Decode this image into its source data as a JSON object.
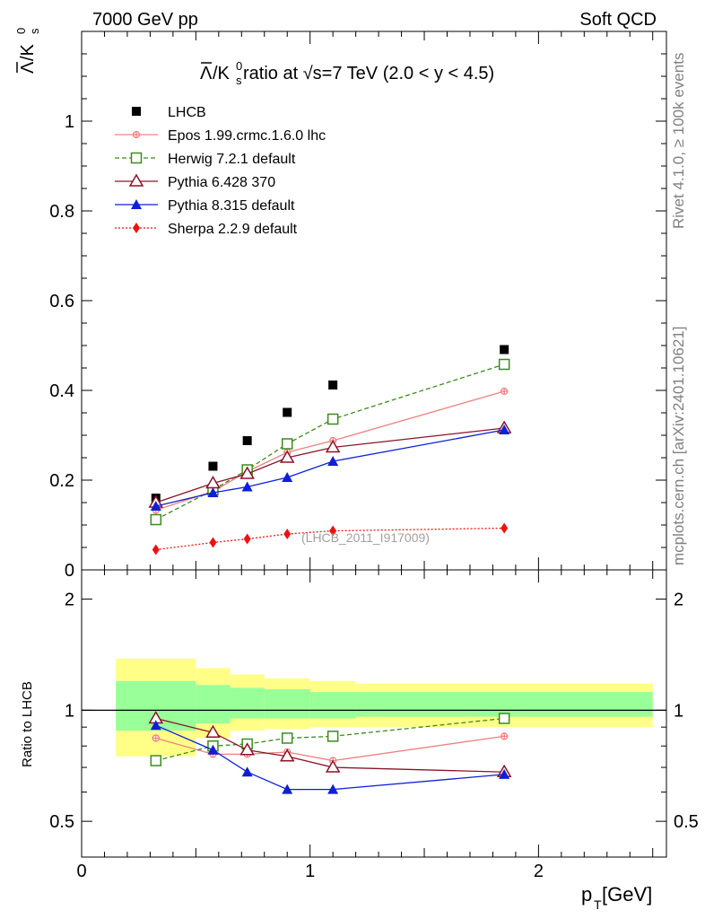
{
  "header": {
    "left": "7000 GeV pp",
    "right": "Soft QCD"
  },
  "side_labels": {
    "rivet": "Rivet 4.1.0, ≥ 100k events",
    "mcplots": "mcplots.cern.ch [arXiv:2401.10621]"
  },
  "main_plot": {
    "title": "Λ̅/K⁰ₛ ratio at √s=7 TeV (2.0 < y < 4.5)",
    "title_prefix": "/K",
    "title_rest": " ratio at √s=7 TeV (2.0 < y < 4.5)",
    "ylabel": "/K",
    "watermark": "(LHCB_2011_I917009)",
    "ylim": [
      0,
      1.2
    ],
    "yticks": [
      "0",
      "0.2",
      "0.4",
      "0.6",
      "0.8",
      "1"
    ]
  },
  "ratio_plot": {
    "ylabel": "Ratio to LHCB",
    "yticks": [
      "0.5",
      "1",
      "2"
    ]
  },
  "xaxis": {
    "label": "p",
    "label_sub": "T",
    "label_unit": " [GeV]",
    "ticks": [
      "0",
      "1",
      "2"
    ],
    "xlim": [
      0,
      2.56
    ]
  },
  "legend": [
    {
      "key": "lhcb",
      "label": "LHCB"
    },
    {
      "key": "epos",
      "label": "Epos 1.99.crmc.1.6.0 lhc"
    },
    {
      "key": "herwig",
      "label": "Herwig 7.2.1 default"
    },
    {
      "key": "py6",
      "label": "Pythia 6.428 370"
    },
    {
      "key": "py8",
      "label": "Pythia 8.315 default"
    },
    {
      "key": "sherpa",
      "label": "Sherpa 2.2.9 default"
    }
  ],
  "chart_data": {
    "type": "scatter",
    "title": "Λ̅/K⁰ₛ ratio at √s=7 TeV (2.0 < y < 4.5)",
    "xlabel": "p_T [GeV]",
    "ylabel": "Λ̅/K⁰ₛ",
    "xlim": [
      0,
      2.56
    ],
    "ylim": [
      0,
      1.2
    ],
    "x": [
      0.325,
      0.575,
      0.725,
      0.9,
      1.1,
      1.85
    ],
    "bin_edges": [
      0.15,
      0.5,
      0.65,
      0.8,
      1.0,
      1.2,
      2.5
    ],
    "series": [
      {
        "key": "lhcb",
        "name": "LHCB",
        "color": "#000000",
        "values": [
          0.16,
          0.231,
          0.288,
          0.351,
          0.412,
          0.491
        ]
      },
      {
        "key": "epos",
        "name": "Epos 1.99.crmc.1.6.0 lhc",
        "color": "#f08080",
        "values": [
          0.133,
          0.175,
          0.219,
          0.262,
          0.288,
          0.398
        ]
      },
      {
        "key": "herwig",
        "name": "Herwig 7.2.1 default",
        "color": "#3a8c1a",
        "values": [
          0.112,
          0.178,
          0.223,
          0.281,
          0.336,
          0.458
        ]
      },
      {
        "key": "py6",
        "name": "Pythia 6.428 370",
        "color": "#8b1428",
        "values": [
          0.15,
          0.193,
          0.214,
          0.25,
          0.273,
          0.316
        ]
      },
      {
        "key": "py8",
        "name": "Pythia 8.315 default",
        "color": "#0f1fd6",
        "values": [
          0.142,
          0.172,
          0.185,
          0.206,
          0.242,
          0.312
        ]
      },
      {
        "key": "sherpa",
        "name": "Sherpa 2.2.9 default",
        "color": "#ee1111",
        "values": [
          0.045,
          0.061,
          0.069,
          0.08,
          0.087,
          0.093
        ]
      }
    ],
    "ratio": {
      "ylabel": "Ratio to LHCB",
      "ylim": [
        0.4,
        2.4
      ],
      "band_inner": [
        [
          0.88,
          1.2
        ],
        [
          0.92,
          1.17
        ],
        [
          0.95,
          1.15
        ],
        [
          0.95,
          1.14
        ],
        [
          0.95,
          1.12
        ],
        [
          0.96,
          1.12
        ]
      ],
      "band_outer": [
        [
          0.75,
          1.38
        ],
        [
          0.84,
          1.3
        ],
        [
          0.88,
          1.25
        ],
        [
          0.89,
          1.22
        ],
        [
          0.9,
          1.2
        ],
        [
          0.9,
          1.18
        ]
      ],
      "series": {
        "epos": [
          0.84,
          0.76,
          0.76,
          0.77,
          0.73,
          0.85
        ],
        "herwig": [
          0.73,
          0.8,
          0.81,
          0.84,
          0.85,
          0.95
        ],
        "py6": [
          0.95,
          0.87,
          0.78,
          0.75,
          0.7,
          0.68
        ],
        "py8": [
          0.91,
          0.78,
          0.68,
          0.61,
          0.61,
          0.67
        ]
      }
    }
  }
}
